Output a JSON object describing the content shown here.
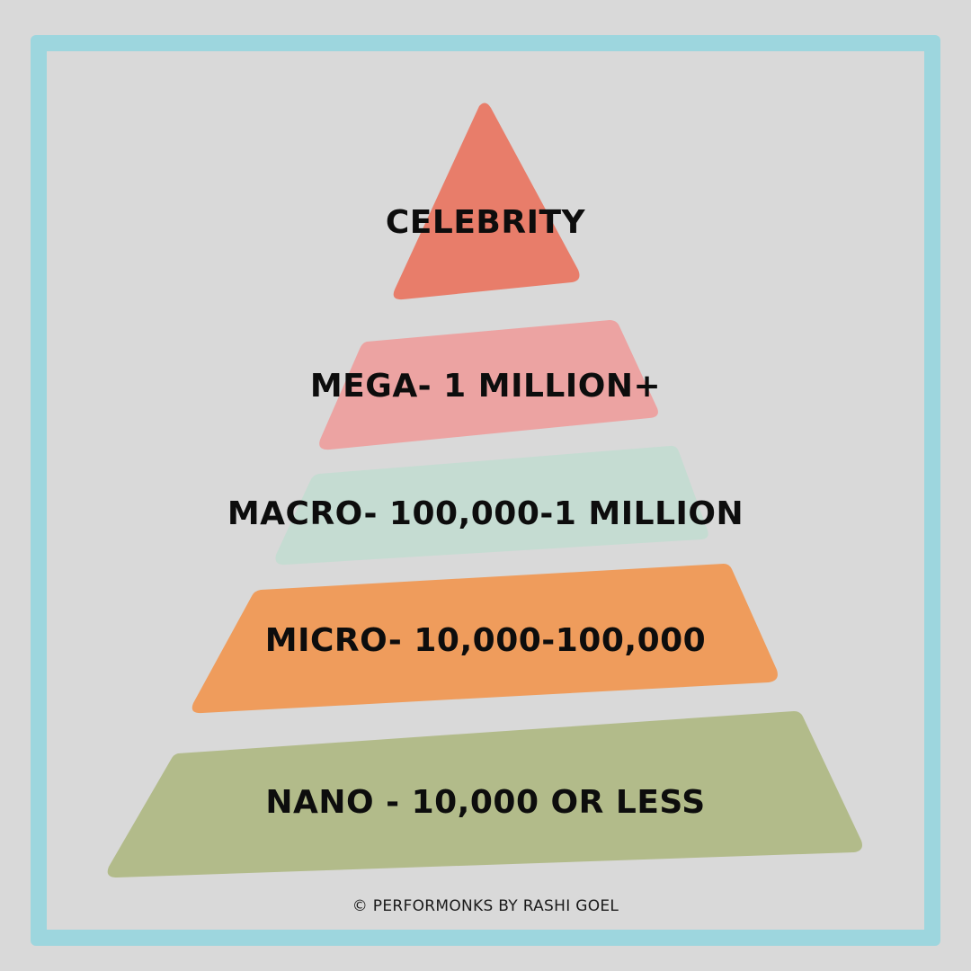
{
  "tiers": [
    {
      "label": "CELEBRITY",
      "color": "#e87d6a"
    },
    {
      "label": "MEGA- 1 MILLION+",
      "color": "#eca3a2"
    },
    {
      "label": "MACRO- 100,000-1 MILLION",
      "color": "#c5dcd2"
    },
    {
      "label": "MICRO- 10,000-100,000",
      "color": "#ef9c5c"
    },
    {
      "label": "NANO - 10,000 OR LESS",
      "color": "#b2bb8a"
    }
  ],
  "footer": {
    "credit": "© PERFORMONKS BY RASHI GOEL"
  },
  "colors": {
    "background": "#d9d9d9",
    "frame": "#9dd6de"
  }
}
